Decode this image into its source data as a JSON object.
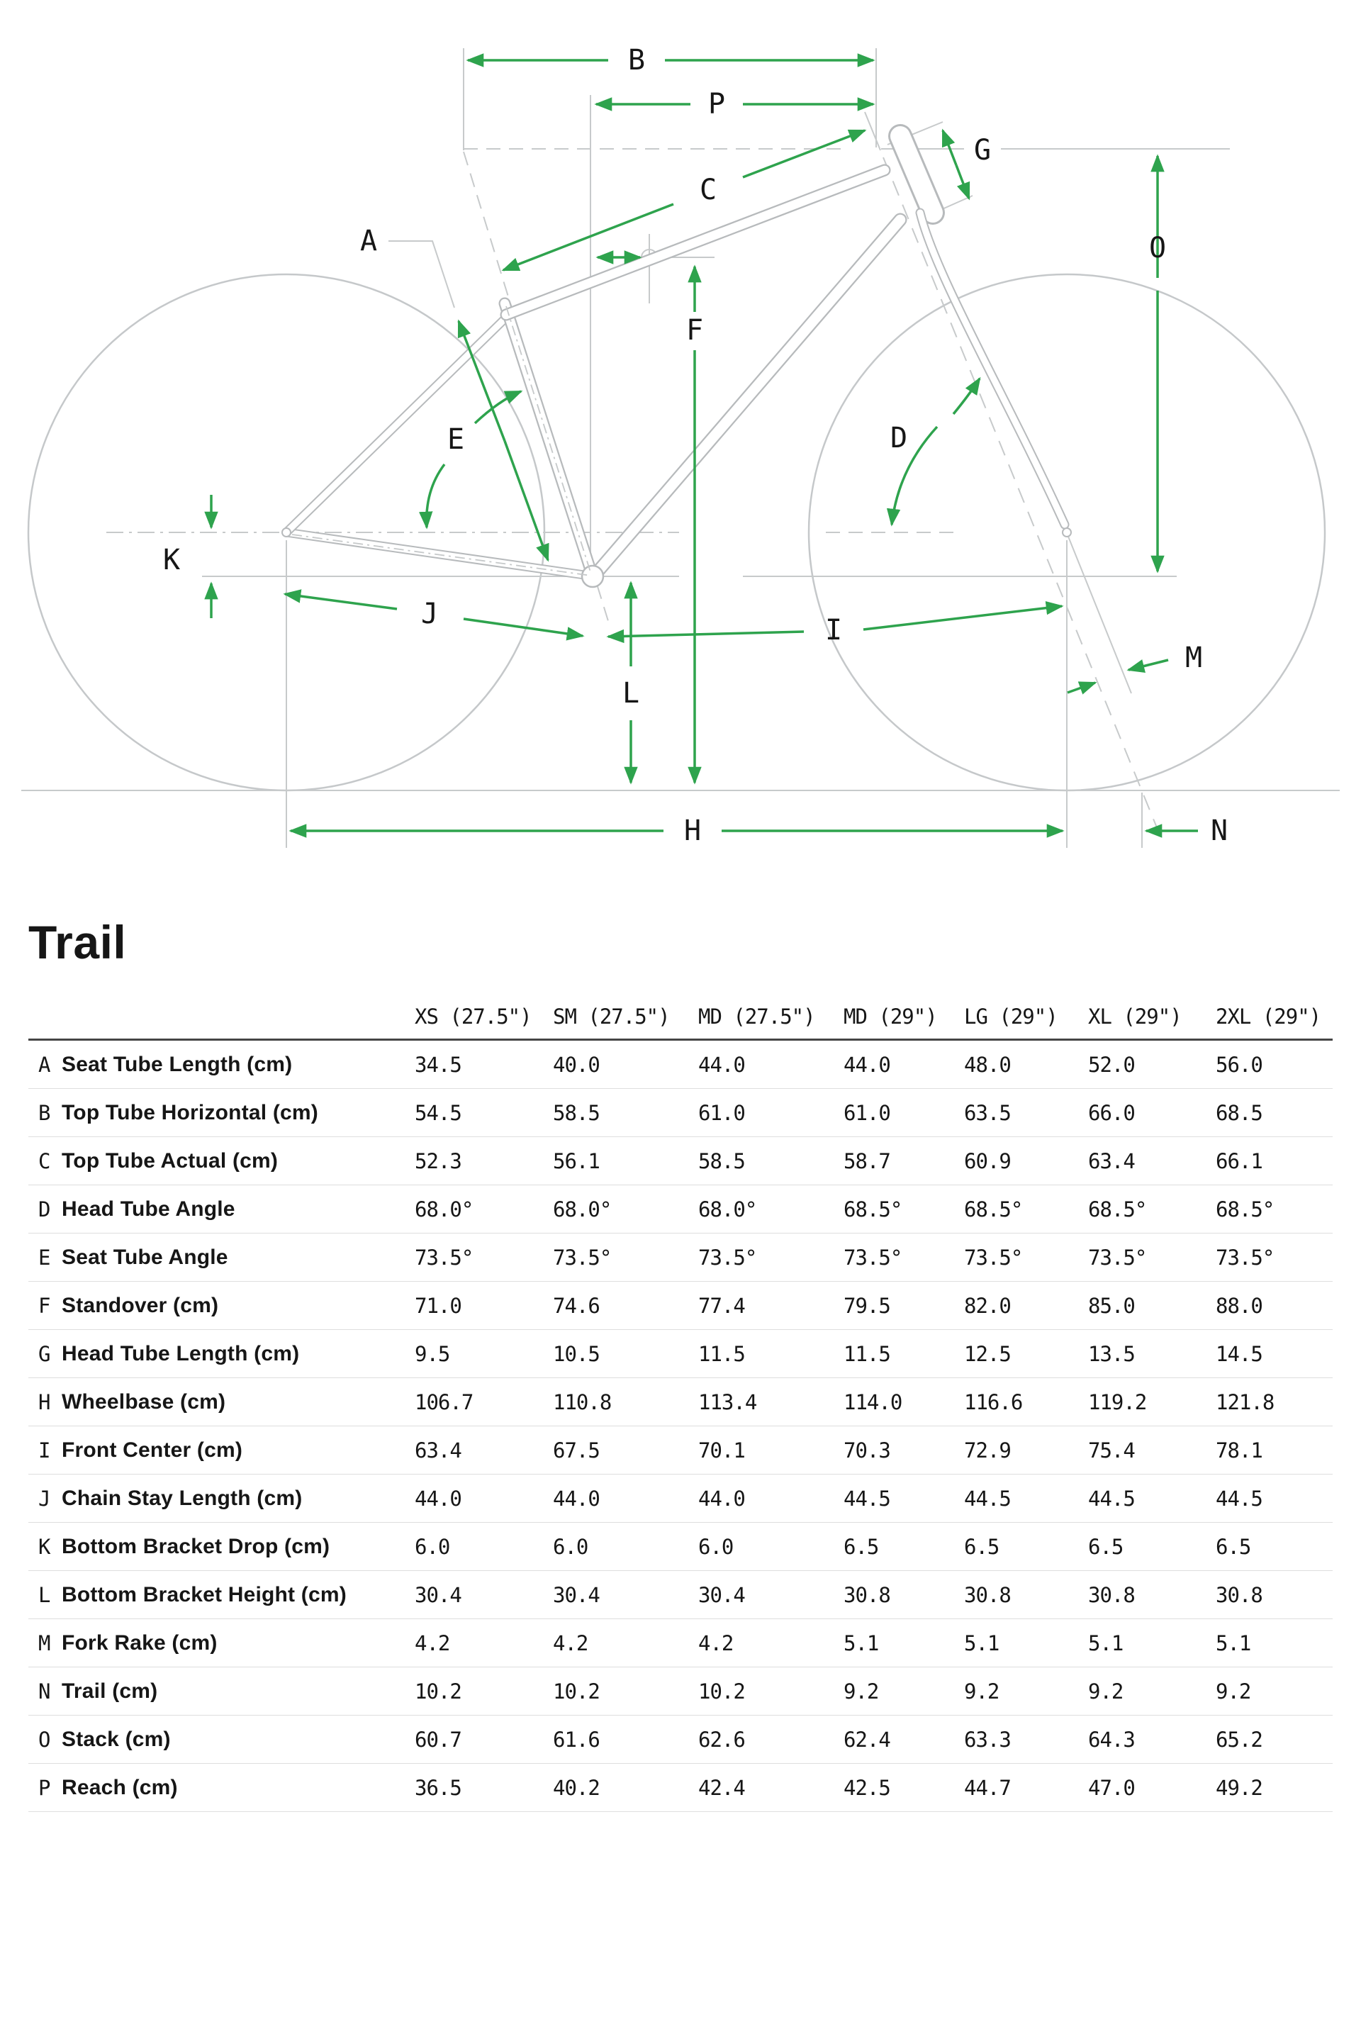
{
  "page": {
    "title": "Trail"
  },
  "colors": {
    "dimension_green": "#2EA34D",
    "frame_gray": "#b7babc",
    "construction_gray": "#c7cacb",
    "text": "#161616"
  },
  "diagram": {
    "labels": {
      "A": "A",
      "B": "B",
      "C": "C",
      "D": "D",
      "E": "E",
      "F": "F",
      "G": "G",
      "H": "H",
      "I": "I",
      "J": "J",
      "K": "K",
      "L": "L",
      "M": "M",
      "N": "N",
      "O": "O",
      "P": "P"
    }
  },
  "table": {
    "columns": [
      "XS (27.5\")",
      "SM (27.5\")",
      "MD (27.5\")",
      "MD (29\")",
      "LG (29\")",
      "XL (29\")",
      "2XL (29\")"
    ],
    "rows": [
      {
        "letter": "A",
        "label": "Seat Tube Length (cm)",
        "values": [
          "34.5",
          "40.0",
          "44.0",
          "44.0",
          "48.0",
          "52.0",
          "56.0"
        ]
      },
      {
        "letter": "B",
        "label": "Top Tube Horizontal (cm)",
        "values": [
          "54.5",
          "58.5",
          "61.0",
          "61.0",
          "63.5",
          "66.0",
          "68.5"
        ]
      },
      {
        "letter": "C",
        "label": "Top Tube Actual (cm)",
        "values": [
          "52.3",
          "56.1",
          "58.5",
          "58.7",
          "60.9",
          "63.4",
          "66.1"
        ]
      },
      {
        "letter": "D",
        "label": "Head Tube Angle",
        "values": [
          "68.0°",
          "68.0°",
          "68.0°",
          "68.5°",
          "68.5°",
          "68.5°",
          "68.5°"
        ]
      },
      {
        "letter": "E",
        "label": "Seat Tube Angle",
        "values": [
          "73.5°",
          "73.5°",
          "73.5°",
          "73.5°",
          "73.5°",
          "73.5°",
          "73.5°"
        ]
      },
      {
        "letter": "F",
        "label": "Standover (cm)",
        "values": [
          "71.0",
          "74.6",
          "77.4",
          "79.5",
          "82.0",
          "85.0",
          "88.0"
        ]
      },
      {
        "letter": "G",
        "label": "Head Tube Length (cm)",
        "values": [
          "9.5",
          "10.5",
          "11.5",
          "11.5",
          "12.5",
          "13.5",
          "14.5"
        ]
      },
      {
        "letter": "H",
        "label": "Wheelbase (cm)",
        "values": [
          "106.7",
          "110.8",
          "113.4",
          "114.0",
          "116.6",
          "119.2",
          "121.8"
        ]
      },
      {
        "letter": "I",
        "label": "Front Center (cm)",
        "values": [
          "63.4",
          "67.5",
          "70.1",
          "70.3",
          "72.9",
          "75.4",
          "78.1"
        ]
      },
      {
        "letter": "J",
        "label": "Chain Stay Length (cm)",
        "values": [
          "44.0",
          "44.0",
          "44.0",
          "44.5",
          "44.5",
          "44.5",
          "44.5"
        ]
      },
      {
        "letter": "K",
        "label": "Bottom Bracket Drop (cm)",
        "values": [
          "6.0",
          "6.0",
          "6.0",
          "6.5",
          "6.5",
          "6.5",
          "6.5"
        ]
      },
      {
        "letter": "L",
        "label": "Bottom Bracket Height (cm)",
        "values": [
          "30.4",
          "30.4",
          "30.4",
          "30.8",
          "30.8",
          "30.8",
          "30.8"
        ]
      },
      {
        "letter": "M",
        "label": "Fork Rake (cm)",
        "values": [
          "4.2",
          "4.2",
          "4.2",
          "5.1",
          "5.1",
          "5.1",
          "5.1"
        ]
      },
      {
        "letter": "N",
        "label": "Trail (cm)",
        "values": [
          "10.2",
          "10.2",
          "10.2",
          "9.2",
          "9.2",
          "9.2",
          "9.2"
        ]
      },
      {
        "letter": "O",
        "label": "Stack (cm)",
        "values": [
          "60.7",
          "61.6",
          "62.6",
          "62.4",
          "63.3",
          "64.3",
          "65.2"
        ]
      },
      {
        "letter": "P",
        "label": "Reach (cm)",
        "values": [
          "36.5",
          "40.2",
          "42.4",
          "42.5",
          "44.7",
          "47.0",
          "49.2"
        ]
      }
    ]
  }
}
